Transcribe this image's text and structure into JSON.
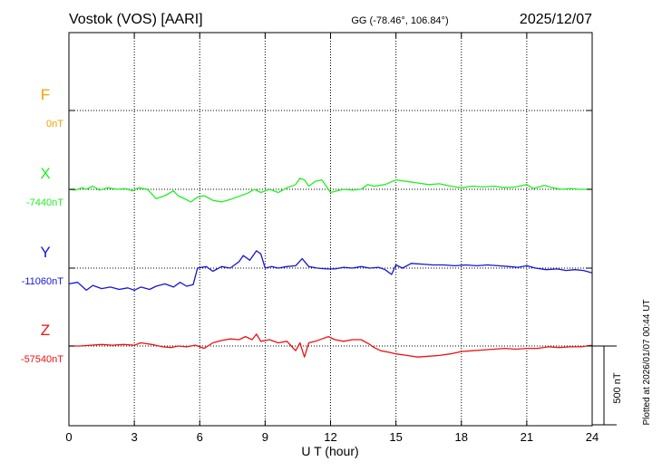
{
  "header": {
    "station": "Vostok (VOS)  [AARI]",
    "coords": "GG (-78.46°, 106.84°)",
    "date": "2025/12/07"
  },
  "footer_note": "Plotted at 2026/01/07 00:44 UT",
  "chart_data": {
    "type": "line",
    "xlabel": "U T (hour)",
    "xlim": [
      0,
      24
    ],
    "x_ticks": [
      0,
      3,
      6,
      9,
      12,
      15,
      18,
      21,
      24
    ],
    "x_tick_labels": [
      "0",
      "3",
      "6",
      "9",
      "12",
      "15",
      "18",
      "21",
      "24"
    ],
    "grid": true,
    "scale_bar": {
      "value_nT": 500,
      "label": "500 nT"
    },
    "panel_range_nT": 500,
    "series": [
      {
        "name": "F",
        "baseline_label": "0nT",
        "color": "#f0a000",
        "points": []
      },
      {
        "name": "X",
        "baseline_label": "-7440nT",
        "color": "#22ee22",
        "points": [
          [
            0,
            -7440
          ],
          [
            0.3,
            -7445
          ],
          [
            0.6,
            -7430
          ],
          [
            0.8,
            -7440
          ],
          [
            1.1,
            -7420
          ],
          [
            1.4,
            -7445
          ],
          [
            1.8,
            -7430
          ],
          [
            2.2,
            -7440
          ],
          [
            2.6,
            -7435
          ],
          [
            2.9,
            -7450
          ],
          [
            3.2,
            -7430
          ],
          [
            3.6,
            -7440
          ],
          [
            3.8,
            -7470
          ],
          [
            4.0,
            -7500
          ],
          [
            4.4,
            -7480
          ],
          [
            4.8,
            -7450
          ],
          [
            5.0,
            -7480
          ],
          [
            5.3,
            -7500
          ],
          [
            5.6,
            -7520
          ],
          [
            5.9,
            -7490
          ],
          [
            6.2,
            -7480
          ],
          [
            6.6,
            -7510
          ],
          [
            7.0,
            -7520
          ],
          [
            7.4,
            -7505
          ],
          [
            7.8,
            -7485
          ],
          [
            8.2,
            -7465
          ],
          [
            8.5,
            -7440
          ],
          [
            8.8,
            -7460
          ],
          [
            9.2,
            -7440
          ],
          [
            9.6,
            -7460
          ],
          [
            10.0,
            -7430
          ],
          [
            10.4,
            -7410
          ],
          [
            10.6,
            -7370
          ],
          [
            10.8,
            -7380
          ],
          [
            11.0,
            -7420
          ],
          [
            11.3,
            -7390
          ],
          [
            11.6,
            -7380
          ],
          [
            11.8,
            -7420
          ],
          [
            12.0,
            -7460
          ],
          [
            12.3,
            -7450
          ],
          [
            12.6,
            -7440
          ],
          [
            13.0,
            -7445
          ],
          [
            13.4,
            -7440
          ],
          [
            13.7,
            -7410
          ],
          [
            14.0,
            -7420
          ],
          [
            14.5,
            -7410
          ],
          [
            15.0,
            -7380
          ],
          [
            15.5,
            -7390
          ],
          [
            16.0,
            -7400
          ],
          [
            16.5,
            -7410
          ],
          [
            17.0,
            -7405
          ],
          [
            17.5,
            -7420
          ],
          [
            18.0,
            -7430
          ],
          [
            18.5,
            -7420
          ],
          [
            19.0,
            -7425
          ],
          [
            19.5,
            -7420
          ],
          [
            20.0,
            -7430
          ],
          [
            20.5,
            -7425
          ],
          [
            21.0,
            -7410
          ],
          [
            21.3,
            -7435
          ],
          [
            21.8,
            -7415
          ],
          [
            22.2,
            -7430
          ],
          [
            22.6,
            -7440
          ],
          [
            23.0,
            -7435
          ],
          [
            23.4,
            -7440
          ],
          [
            24.0,
            -7440
          ]
        ]
      },
      {
        "name": "Y",
        "baseline_label": "-11060nT",
        "color": "#1515d8",
        "points": [
          [
            0,
            -11160
          ],
          [
            0.4,
            -11150
          ],
          [
            0.8,
            -11200
          ],
          [
            1.1,
            -11170
          ],
          [
            1.5,
            -11190
          ],
          [
            1.9,
            -11180
          ],
          [
            2.3,
            -11195
          ],
          [
            2.7,
            -11185
          ],
          [
            3.0,
            -11200
          ],
          [
            3.3,
            -11180
          ],
          [
            3.7,
            -11195
          ],
          [
            4.0,
            -11175
          ],
          [
            4.4,
            -11160
          ],
          [
            4.8,
            -11180
          ],
          [
            5.1,
            -11150
          ],
          [
            5.4,
            -11175
          ],
          [
            5.7,
            -11165
          ],
          [
            5.9,
            -11060
          ],
          [
            6.3,
            -11050
          ],
          [
            6.6,
            -11080
          ],
          [
            7.0,
            -11050
          ],
          [
            7.4,
            -11060
          ],
          [
            7.8,
            -11020
          ],
          [
            8.0,
            -10980
          ],
          [
            8.3,
            -11010
          ],
          [
            8.6,
            -10950
          ],
          [
            8.8,
            -10970
          ],
          [
            9.0,
            -11060
          ],
          [
            9.3,
            -11050
          ],
          [
            9.6,
            -11060
          ],
          [
            10.0,
            -11050
          ],
          [
            10.4,
            -11045
          ],
          [
            10.7,
            -11000
          ],
          [
            11.0,
            -11050
          ],
          [
            11.4,
            -11060
          ],
          [
            11.8,
            -11065
          ],
          [
            12.2,
            -11065
          ],
          [
            12.6,
            -11055
          ],
          [
            13.0,
            -11060
          ],
          [
            13.4,
            -11050
          ],
          [
            13.8,
            -11060
          ],
          [
            14.2,
            -11055
          ],
          [
            14.5,
            -11070
          ],
          [
            14.8,
            -11100
          ],
          [
            15.0,
            -11040
          ],
          [
            15.3,
            -11060
          ],
          [
            15.7,
            -11030
          ],
          [
            16.2,
            -11035
          ],
          [
            16.7,
            -11040
          ],
          [
            17.2,
            -11040
          ],
          [
            17.7,
            -11045
          ],
          [
            18.2,
            -11040
          ],
          [
            18.7,
            -11045
          ],
          [
            19.2,
            -11040
          ],
          [
            19.7,
            -11045
          ],
          [
            20.2,
            -11050
          ],
          [
            20.6,
            -11055
          ],
          [
            21.0,
            -11045
          ],
          [
            21.4,
            -11060
          ],
          [
            21.9,
            -11070
          ],
          [
            22.4,
            -11065
          ],
          [
            22.8,
            -11075
          ],
          [
            23.2,
            -11070
          ],
          [
            23.6,
            -11075
          ],
          [
            24.0,
            -11090
          ]
        ]
      },
      {
        "name": "Z",
        "baseline_label": "-57540nT",
        "color": "#ee1111",
        "points": [
          [
            0,
            -57540
          ],
          [
            0.5,
            -57540
          ],
          [
            1.0,
            -57535
          ],
          [
            1.5,
            -57530
          ],
          [
            2.0,
            -57535
          ],
          [
            2.5,
            -57530
          ],
          [
            3.0,
            -57535
          ],
          [
            3.3,
            -57520
          ],
          [
            3.8,
            -57530
          ],
          [
            4.3,
            -57545
          ],
          [
            4.7,
            -57550
          ],
          [
            5.0,
            -57540
          ],
          [
            5.4,
            -57545
          ],
          [
            5.8,
            -57535
          ],
          [
            6.2,
            -57555
          ],
          [
            6.6,
            -57520
          ],
          [
            7.0,
            -57505
          ],
          [
            7.4,
            -57495
          ],
          [
            7.8,
            -57500
          ],
          [
            8.1,
            -57480
          ],
          [
            8.4,
            -57500
          ],
          [
            8.6,
            -57465
          ],
          [
            8.8,
            -57510
          ],
          [
            9.2,
            -57500
          ],
          [
            9.6,
            -57520
          ],
          [
            10.0,
            -57510
          ],
          [
            10.2,
            -57540
          ],
          [
            10.4,
            -57570
          ],
          [
            10.6,
            -57520
          ],
          [
            10.8,
            -57610
          ],
          [
            11.0,
            -57520
          ],
          [
            11.3,
            -57510
          ],
          [
            11.6,
            -57495
          ],
          [
            11.9,
            -57480
          ],
          [
            12.2,
            -57500
          ],
          [
            12.6,
            -57510
          ],
          [
            13.0,
            -57500
          ],
          [
            13.4,
            -57500
          ],
          [
            13.8,
            -57530
          ],
          [
            14.0,
            -57550
          ],
          [
            14.3,
            -57570
          ],
          [
            14.7,
            -57580
          ],
          [
            15.0,
            -57590
          ],
          [
            15.5,
            -57600
          ],
          [
            16.0,
            -57610
          ],
          [
            16.5,
            -57605
          ],
          [
            17.0,
            -57600
          ],
          [
            17.5,
            -57590
          ],
          [
            18.0,
            -57575
          ],
          [
            18.5,
            -57570
          ],
          [
            19.0,
            -57565
          ],
          [
            19.5,
            -57560
          ],
          [
            20.0,
            -57555
          ],
          [
            20.5,
            -57560
          ],
          [
            21.0,
            -57555
          ],
          [
            21.5,
            -57555
          ],
          [
            22.0,
            -57545
          ],
          [
            22.5,
            -57550
          ],
          [
            23.0,
            -57545
          ],
          [
            23.5,
            -57545
          ],
          [
            24.0,
            -57535
          ]
        ]
      }
    ]
  }
}
